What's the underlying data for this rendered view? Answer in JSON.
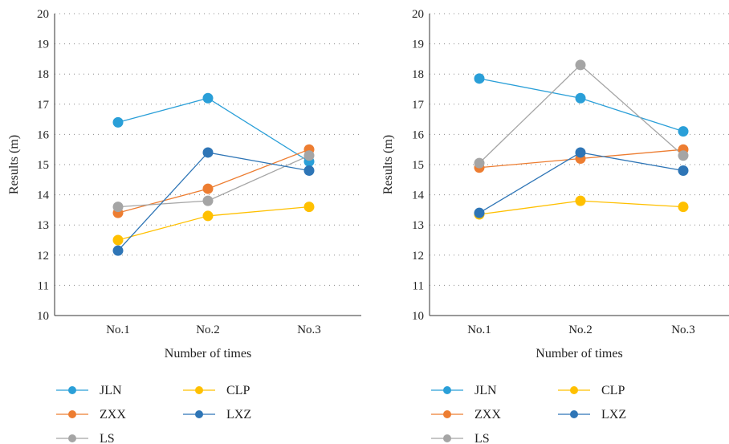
{
  "chart_data": [
    {
      "type": "line",
      "categories": [
        "No.1",
        "No.2",
        "No.3"
      ],
      "xlabel": "Number of times",
      "ylabel": "Results (m)",
      "ylim": [
        10,
        20
      ],
      "yticks": [
        "10",
        "11",
        "12",
        "13",
        "14",
        "15",
        "16",
        "17",
        "18",
        "19",
        "20"
      ],
      "grid": true,
      "legend_position": "bottom",
      "series": [
        {
          "name": "JLN",
          "color": "#2a9fd8",
          "values": [
            16.4,
            17.2,
            15.1
          ]
        },
        {
          "name": "ZXX",
          "color": "#ed7d31",
          "values": [
            13.4,
            14.2,
            15.5
          ]
        },
        {
          "name": "LS",
          "color": "#a5a5a5",
          "values": [
            13.6,
            13.8,
            15.3
          ]
        },
        {
          "name": "CLP",
          "color": "#ffc000",
          "values": [
            12.5,
            13.3,
            13.6
          ]
        },
        {
          "name": "LXZ",
          "color": "#2e75b6",
          "values": [
            12.15,
            15.4,
            14.8
          ]
        }
      ]
    },
    {
      "type": "line",
      "categories": [
        "No.1",
        "No.2",
        "No.3"
      ],
      "xlabel": "Number of times",
      "ylabel": "Results (m)",
      "ylim": [
        10,
        20
      ],
      "yticks": [
        "10",
        "11",
        "12",
        "13",
        "14",
        "15",
        "16",
        "17",
        "18",
        "19",
        "20"
      ],
      "grid": true,
      "legend_position": "bottom",
      "series": [
        {
          "name": "JLN",
          "color": "#2a9fd8",
          "values": [
            17.85,
            17.2,
            16.1
          ]
        },
        {
          "name": "ZXX",
          "color": "#ed7d31",
          "values": [
            14.9,
            15.2,
            15.5
          ]
        },
        {
          "name": "LS",
          "color": "#a5a5a5",
          "values": [
            15.05,
            18.3,
            15.3
          ]
        },
        {
          "name": "CLP",
          "color": "#ffc000",
          "values": [
            13.35,
            13.8,
            13.6
          ]
        },
        {
          "name": "LXZ",
          "color": "#2e75b6",
          "values": [
            13.4,
            15.4,
            14.8
          ]
        }
      ]
    }
  ]
}
